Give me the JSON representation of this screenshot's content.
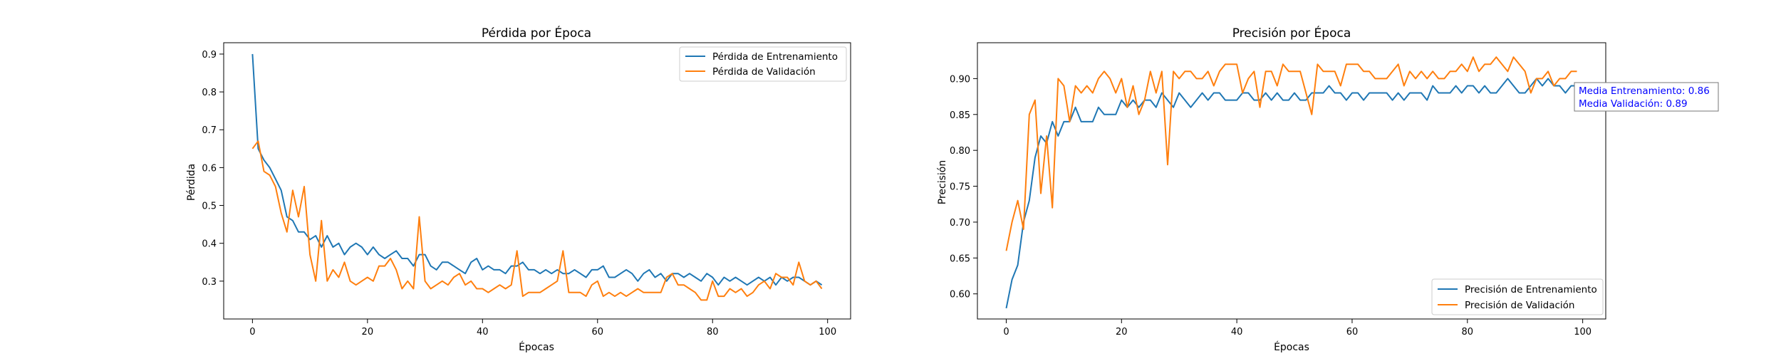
{
  "chart_data": [
    {
      "type": "line",
      "title": "Pérdida por Época",
      "xlabel": "Épocas",
      "ylabel": "Pérdida",
      "xlim": [
        -5,
        104
      ],
      "ylim": [
        0.2,
        0.93
      ],
      "xticks": [
        0,
        20,
        40,
        60,
        80,
        100
      ],
      "yticks": [
        0.3,
        0.4,
        0.5,
        0.6,
        0.7,
        0.8,
        0.9
      ],
      "ytick_labels": [
        "0.3",
        "0.4",
        "0.5",
        "0.6",
        "0.7",
        "0.8",
        "0.9"
      ],
      "grid": false,
      "legend_position": "top-right",
      "series": [
        {
          "name": "Pérdida de Entrenamiento",
          "color": "#1f77b4",
          "values": [
            0.9,
            0.65,
            0.62,
            0.6,
            0.57,
            0.54,
            0.47,
            0.46,
            0.43,
            0.43,
            0.41,
            0.42,
            0.39,
            0.42,
            0.39,
            0.4,
            0.37,
            0.39,
            0.4,
            0.39,
            0.37,
            0.39,
            0.37,
            0.36,
            0.37,
            0.38,
            0.36,
            0.36,
            0.34,
            0.37,
            0.37,
            0.34,
            0.33,
            0.35,
            0.35,
            0.34,
            0.33,
            0.32,
            0.35,
            0.36,
            0.33,
            0.34,
            0.33,
            0.33,
            0.32,
            0.34,
            0.34,
            0.35,
            0.33,
            0.33,
            0.32,
            0.33,
            0.32,
            0.33,
            0.32,
            0.32,
            0.33,
            0.32,
            0.31,
            0.33,
            0.33,
            0.34,
            0.31,
            0.31,
            0.32,
            0.33,
            0.32,
            0.3,
            0.32,
            0.33,
            0.31,
            0.32,
            0.3,
            0.32,
            0.32,
            0.31,
            0.32,
            0.31,
            0.3,
            0.32,
            0.31,
            0.29,
            0.31,
            0.3,
            0.31,
            0.3,
            0.29,
            0.3,
            0.31,
            0.3,
            0.31,
            0.29,
            0.31,
            0.3,
            0.31,
            0.31,
            0.3,
            0.29,
            0.3,
            0.29
          ]
        },
        {
          "name": "Pérdida de Validación",
          "color": "#ff7f0e",
          "values": [
            0.65,
            0.67,
            0.59,
            0.58,
            0.55,
            0.48,
            0.43,
            0.54,
            0.47,
            0.55,
            0.37,
            0.3,
            0.46,
            0.3,
            0.33,
            0.31,
            0.35,
            0.3,
            0.29,
            0.3,
            0.31,
            0.3,
            0.34,
            0.34,
            0.36,
            0.33,
            0.28,
            0.3,
            0.28,
            0.47,
            0.3,
            0.28,
            0.29,
            0.3,
            0.29,
            0.31,
            0.32,
            0.29,
            0.3,
            0.28,
            0.28,
            0.27,
            0.28,
            0.29,
            0.28,
            0.29,
            0.38,
            0.26,
            0.27,
            0.27,
            0.27,
            0.28,
            0.29,
            0.3,
            0.38,
            0.27,
            0.27,
            0.27,
            0.26,
            0.29,
            0.3,
            0.26,
            0.27,
            0.26,
            0.27,
            0.26,
            0.27,
            0.28,
            0.27,
            0.27,
            0.27,
            0.27,
            0.31,
            0.32,
            0.29,
            0.29,
            0.28,
            0.27,
            0.25,
            0.25,
            0.3,
            0.26,
            0.26,
            0.28,
            0.27,
            0.28,
            0.26,
            0.27,
            0.29,
            0.3,
            0.28,
            0.32,
            0.31,
            0.31,
            0.29,
            0.35,
            0.3,
            0.29,
            0.3,
            0.28
          ]
        }
      ]
    },
    {
      "type": "line",
      "title": "Precisión por Época",
      "xlabel": "Épocas",
      "ylabel": "Precisión",
      "xlim": [
        -5,
        104
      ],
      "ylim": [
        0.565,
        0.95
      ],
      "xticks": [
        0,
        20,
        40,
        60,
        80,
        100
      ],
      "yticks": [
        0.6,
        0.65,
        0.7,
        0.75,
        0.8,
        0.85,
        0.9
      ],
      "ytick_labels": [
        "0.60",
        "0.65",
        "0.70",
        "0.75",
        "0.80",
        "0.85",
        "0.90"
      ],
      "grid": false,
      "legend_position": "bottom-right",
      "annotation": {
        "lines": [
          "Media Entrenamiento: 0.86",
          "Media Validación: 0.89"
        ],
        "color": "#0000ff"
      },
      "series": [
        {
          "name": "Precisión de Entrenamiento",
          "color": "#1f77b4",
          "values": [
            0.58,
            0.62,
            0.64,
            0.7,
            0.73,
            0.79,
            0.82,
            0.81,
            0.84,
            0.82,
            0.84,
            0.84,
            0.86,
            0.84,
            0.84,
            0.84,
            0.86,
            0.85,
            0.85,
            0.85,
            0.87,
            0.86,
            0.87,
            0.86,
            0.87,
            0.87,
            0.86,
            0.88,
            0.87,
            0.86,
            0.88,
            0.87,
            0.86,
            0.87,
            0.88,
            0.87,
            0.88,
            0.88,
            0.87,
            0.87,
            0.87,
            0.88,
            0.88,
            0.87,
            0.87,
            0.88,
            0.87,
            0.88,
            0.87,
            0.87,
            0.88,
            0.87,
            0.87,
            0.88,
            0.88,
            0.88,
            0.89,
            0.88,
            0.88,
            0.87,
            0.88,
            0.88,
            0.87,
            0.88,
            0.88,
            0.88,
            0.88,
            0.87,
            0.88,
            0.87,
            0.88,
            0.88,
            0.88,
            0.87,
            0.89,
            0.88,
            0.88,
            0.88,
            0.89,
            0.88,
            0.89,
            0.89,
            0.88,
            0.89,
            0.88,
            0.88,
            0.89,
            0.9,
            0.89,
            0.88,
            0.88,
            0.89,
            0.9,
            0.89,
            0.9,
            0.89,
            0.89,
            0.88,
            0.89,
            0.89
          ]
        },
        {
          "name": "Precisión de Validación",
          "color": "#ff7f0e",
          "values": [
            0.66,
            0.7,
            0.73,
            0.69,
            0.85,
            0.87,
            0.74,
            0.82,
            0.72,
            0.9,
            0.89,
            0.84,
            0.89,
            0.88,
            0.89,
            0.88,
            0.9,
            0.91,
            0.9,
            0.88,
            0.9,
            0.86,
            0.89,
            0.85,
            0.87,
            0.91,
            0.88,
            0.91,
            0.78,
            0.91,
            0.9,
            0.91,
            0.91,
            0.9,
            0.9,
            0.91,
            0.89,
            0.91,
            0.92,
            0.92,
            0.92,
            0.88,
            0.9,
            0.91,
            0.86,
            0.91,
            0.91,
            0.89,
            0.92,
            0.91,
            0.91,
            0.91,
            0.88,
            0.85,
            0.92,
            0.91,
            0.91,
            0.91,
            0.89,
            0.92,
            0.92,
            0.92,
            0.91,
            0.91,
            0.9,
            0.9,
            0.9,
            0.91,
            0.92,
            0.89,
            0.91,
            0.9,
            0.91,
            0.9,
            0.91,
            0.9,
            0.9,
            0.91,
            0.91,
            0.92,
            0.91,
            0.93,
            0.91,
            0.92,
            0.92,
            0.93,
            0.92,
            0.91,
            0.93,
            0.92,
            0.91,
            0.88,
            0.9,
            0.9,
            0.91,
            0.89,
            0.9,
            0.9,
            0.91,
            0.91
          ]
        }
      ]
    }
  ]
}
